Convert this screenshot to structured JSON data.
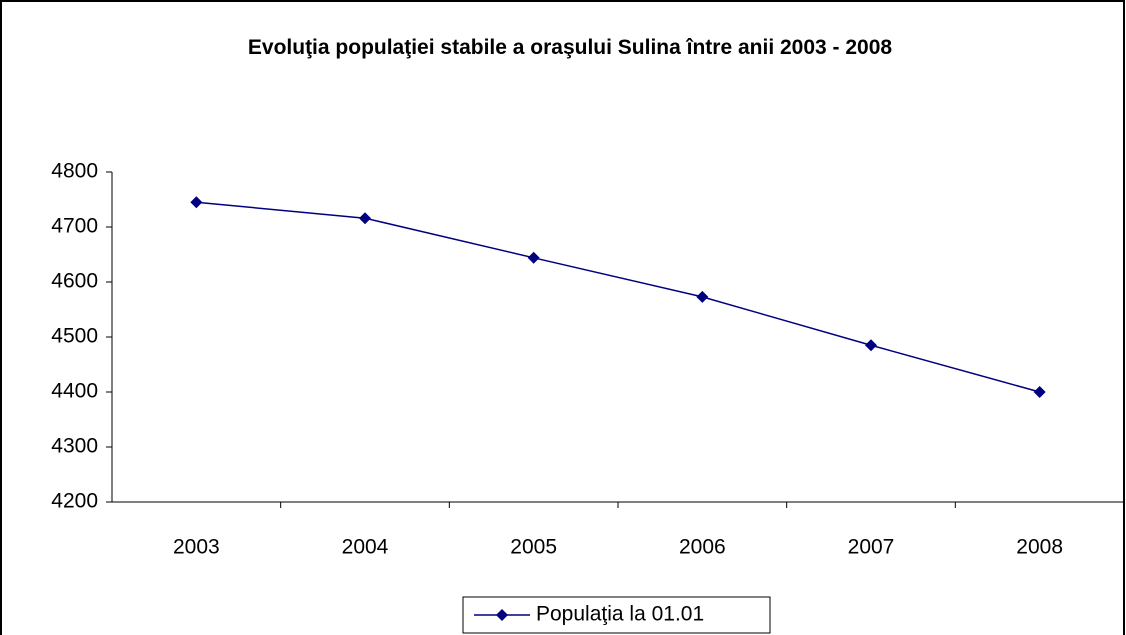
{
  "chart_data": {
    "type": "line",
    "title": "Evoluţia populaţiei stabile a oraşului Sulina între anii 2003 - 2008",
    "categories": [
      "2003",
      "2004",
      "2005",
      "2006",
      "2007",
      "2008"
    ],
    "series": [
      {
        "name": "Populaţia la 01.01",
        "color": "#000080",
        "values": [
          4745,
          4716,
          4644,
          4573,
          4485,
          4400
        ]
      }
    ],
    "ylim": [
      4200,
      4800
    ],
    "yticks": [
      4200,
      4300,
      4400,
      4500,
      4600,
      4700,
      4800
    ],
    "grid": false,
    "legend": "bottom"
  }
}
